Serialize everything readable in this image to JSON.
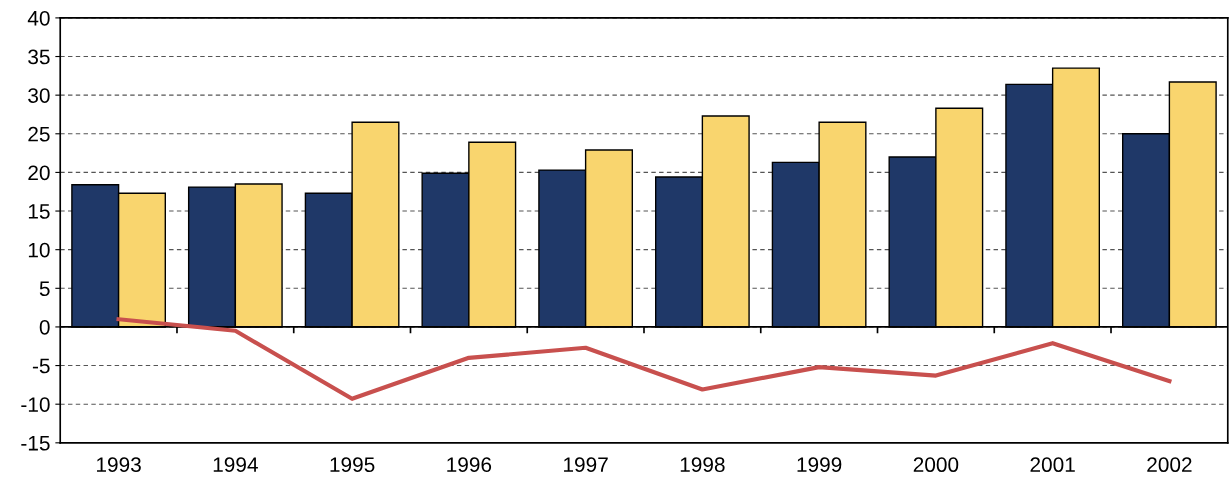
{
  "chart_data": {
    "type": "bar",
    "categories": [
      "1993",
      "1994",
      "1995",
      "1996",
      "1997",
      "1998",
      "1999",
      "2000",
      "2001",
      "2002"
    ],
    "series": [
      {
        "color": "#1f3868",
        "values": [
          18.4,
          18.1,
          17.3,
          19.9,
          20.3,
          19.4,
          21.3,
          22.0,
          31.4,
          25.0
        ]
      },
      {
        "color": "#f9d56e",
        "values": [
          17.3,
          18.5,
          26.5,
          23.9,
          22.9,
          27.3,
          26.5,
          28.3,
          33.5,
          31.7
        ]
      },
      {
        "type": "line",
        "color": "#c8504e",
        "values": [
          1.0,
          -0.5,
          -9.3,
          -4.0,
          -2.7,
          -8.1,
          -5.2,
          -6.3,
          -2.1,
          -7.0
        ]
      }
    ],
    "ylim": [
      -15,
      40
    ],
    "yticks": [
      -15,
      -10,
      -5,
      0,
      5,
      10,
      15,
      20,
      25,
      30,
      35,
      40
    ],
    "grid": "y",
    "legend": false
  }
}
